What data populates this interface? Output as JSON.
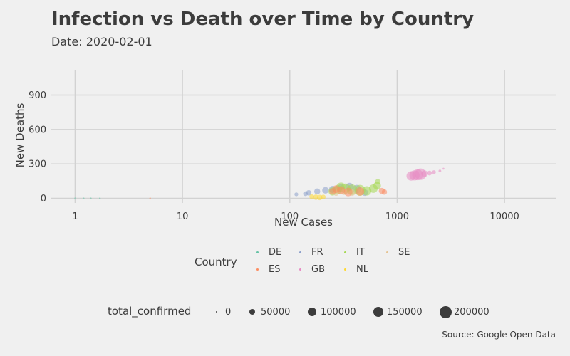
{
  "title": "Infection vs Death over Time by Country",
  "subtitle": "Date: 2020-02-01",
  "caption": "Source: Google Open Data",
  "chart_data": {
    "type": "scatter",
    "xlabel": "New Cases",
    "ylabel": "New Deaths",
    "x_scale": "log10",
    "xlim": [
      0.6,
      30000
    ],
    "ylim": [
      -40,
      1120
    ],
    "x_ticks": [
      {
        "value": 1,
        "label": "1"
      },
      {
        "value": 10,
        "label": "10"
      },
      {
        "value": 100,
        "label": "100"
      },
      {
        "value": 1000,
        "label": "1000"
      },
      {
        "value": 10000,
        "label": "10000"
      }
    ],
    "y_ticks": [
      {
        "value": 0,
        "label": "0"
      },
      {
        "value": 300,
        "label": "300"
      },
      {
        "value": 600,
        "label": "600"
      },
      {
        "value": 900,
        "label": "900"
      }
    ],
    "grid": true,
    "legend_position": "bottom",
    "series": [
      {
        "name": "DE",
        "color": "#66c2a5",
        "points": [
          {
            "x": 1,
            "y": 0,
            "size": 2
          },
          {
            "x": 1.2,
            "y": 0,
            "size": 1
          },
          {
            "x": 1.4,
            "y": 0,
            "size": 1
          },
          {
            "x": 1.7,
            "y": 0,
            "size": 1
          }
        ]
      },
      {
        "name": "FR",
        "color": "#8da0cb",
        "points": [
          {
            "x": 115,
            "y": 35,
            "size": 20000
          },
          {
            "x": 140,
            "y": 40,
            "size": 30000
          },
          {
            "x": 150,
            "y": 48,
            "size": 40000
          },
          {
            "x": 180,
            "y": 60,
            "size": 50000
          },
          {
            "x": 215,
            "y": 70,
            "size": 60000
          },
          {
            "x": 250,
            "y": 78,
            "size": 70000
          },
          {
            "x": 300,
            "y": 90,
            "size": 80000
          },
          {
            "x": 360,
            "y": 100,
            "size": 90000
          },
          {
            "x": 420,
            "y": 80,
            "size": 100000
          },
          {
            "x": 500,
            "y": 50,
            "size": 60000
          }
        ]
      },
      {
        "name": "IT",
        "color": "#a6d854",
        "points": [
          {
            "x": 250,
            "y": 60,
            "size": 90000
          },
          {
            "x": 280,
            "y": 75,
            "size": 110000
          },
          {
            "x": 300,
            "y": 95,
            "size": 130000
          },
          {
            "x": 330,
            "y": 85,
            "size": 140000
          },
          {
            "x": 380,
            "y": 75,
            "size": 150000
          },
          {
            "x": 450,
            "y": 70,
            "size": 160000
          },
          {
            "x": 520,
            "y": 65,
            "size": 120000
          },
          {
            "x": 600,
            "y": 85,
            "size": 100000
          },
          {
            "x": 650,
            "y": 110,
            "size": 80000
          },
          {
            "x": 660,
            "y": 145,
            "size": 40000
          }
        ]
      },
      {
        "name": "SE",
        "color": "#e5c494",
        "points": [
          {
            "x": 270,
            "y": 45,
            "size": 40000
          },
          {
            "x": 320,
            "y": 55,
            "size": 50000
          },
          {
            "x": 380,
            "y": 50,
            "size": 60000
          },
          {
            "x": 460,
            "y": 55,
            "size": 50000
          }
        ]
      },
      {
        "name": "ES",
        "color": "#fc8d62",
        "points": [
          {
            "x": 5,
            "y": 0,
            "size": 1
          },
          {
            "x": 250,
            "y": 60,
            "size": 60000
          },
          {
            "x": 270,
            "y": 80,
            "size": 80000
          },
          {
            "x": 300,
            "y": 70,
            "size": 90000
          },
          {
            "x": 350,
            "y": 55,
            "size": 100000
          },
          {
            "x": 450,
            "y": 60,
            "size": 100000
          },
          {
            "x": 720,
            "y": 65,
            "size": 50000
          },
          {
            "x": 760,
            "y": 55,
            "size": 40000
          }
        ]
      },
      {
        "name": "GB",
        "color": "#e78ac3",
        "points": [
          {
            "x": 1350,
            "y": 195,
            "size": 120000
          },
          {
            "x": 1450,
            "y": 200,
            "size": 140000
          },
          {
            "x": 1550,
            "y": 205,
            "size": 160000
          },
          {
            "x": 1650,
            "y": 210,
            "size": 180000
          },
          {
            "x": 1800,
            "y": 215,
            "size": 60000
          },
          {
            "x": 2000,
            "y": 220,
            "size": 30000
          },
          {
            "x": 2200,
            "y": 228,
            "size": 20000
          },
          {
            "x": 2500,
            "y": 238,
            "size": 10000
          },
          {
            "x": 2700,
            "y": 258,
            "size": 5000
          }
        ]
      },
      {
        "name": "NL",
        "color": "#ffd92f",
        "points": [
          {
            "x": 160,
            "y": 15,
            "size": 30000
          },
          {
            "x": 175,
            "y": 10,
            "size": 40000
          },
          {
            "x": 190,
            "y": 8,
            "size": 40000
          },
          {
            "x": 205,
            "y": 12,
            "size": 30000
          }
        ]
      }
    ]
  },
  "legend": {
    "country": {
      "title": "Country",
      "keys": [
        {
          "label": "DE",
          "color": "#66c2a5"
        },
        {
          "label": "FR",
          "color": "#8da0cb"
        },
        {
          "label": "IT",
          "color": "#a6d854"
        },
        {
          "label": "SE",
          "color": "#e5c494"
        },
        {
          "label": "ES",
          "color": "#fc8d62"
        },
        {
          "label": "GB",
          "color": "#e78ac3"
        },
        {
          "label": "NL",
          "color": "#ffd92f"
        }
      ]
    },
    "size": {
      "title": "total_confirmed",
      "keys": [
        {
          "label": "0",
          "value": 0
        },
        {
          "label": "50000",
          "value": 50000
        },
        {
          "label": "100000",
          "value": 100000
        },
        {
          "label": "150000",
          "value": 150000
        },
        {
          "label": "200000",
          "value": 200000
        }
      ]
    }
  }
}
